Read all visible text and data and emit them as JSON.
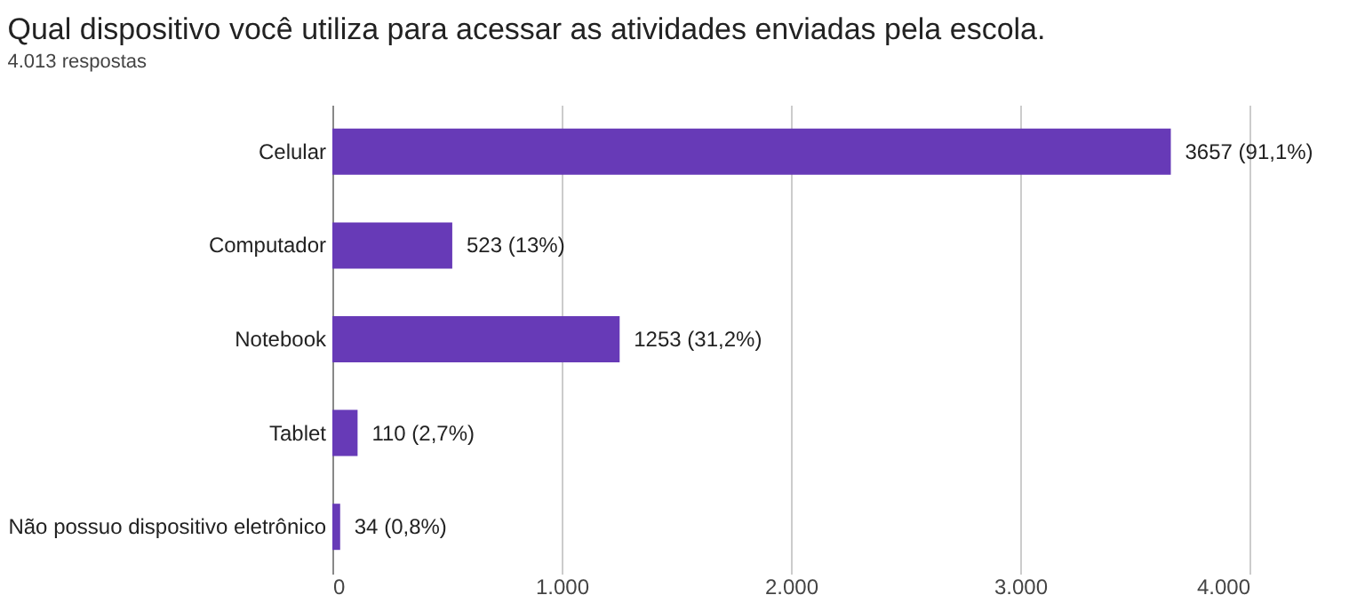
{
  "chart_data": {
    "type": "bar",
    "orientation": "horizontal",
    "title": "Qual dispositivo você utiliza para acessar  as atividades enviadas pela escola.",
    "subtitle": "4.013 respostas",
    "categories": [
      "Celular",
      "Computador",
      "Notebook",
      "Tablet",
      "Não possuo dispositivo eletrônico"
    ],
    "values": [
      3657,
      523,
      1253,
      110,
      34
    ],
    "value_labels": [
      "3657 (91,1%)",
      "523 (13%)",
      "1253 (31,2%)",
      "110 (2,7%)",
      "34 (0,8%)"
    ],
    "color": "#673ab7",
    "xlim": [
      0,
      4000
    ],
    "xticks": [
      {
        "value": 0,
        "label": "0"
      },
      {
        "value": 1000,
        "label": "1.000"
      },
      {
        "value": 2000,
        "label": "2.000"
      },
      {
        "value": 3000,
        "label": "3.000"
      },
      {
        "value": 4000,
        "label": "4.000"
      }
    ],
    "grid": "x"
  }
}
